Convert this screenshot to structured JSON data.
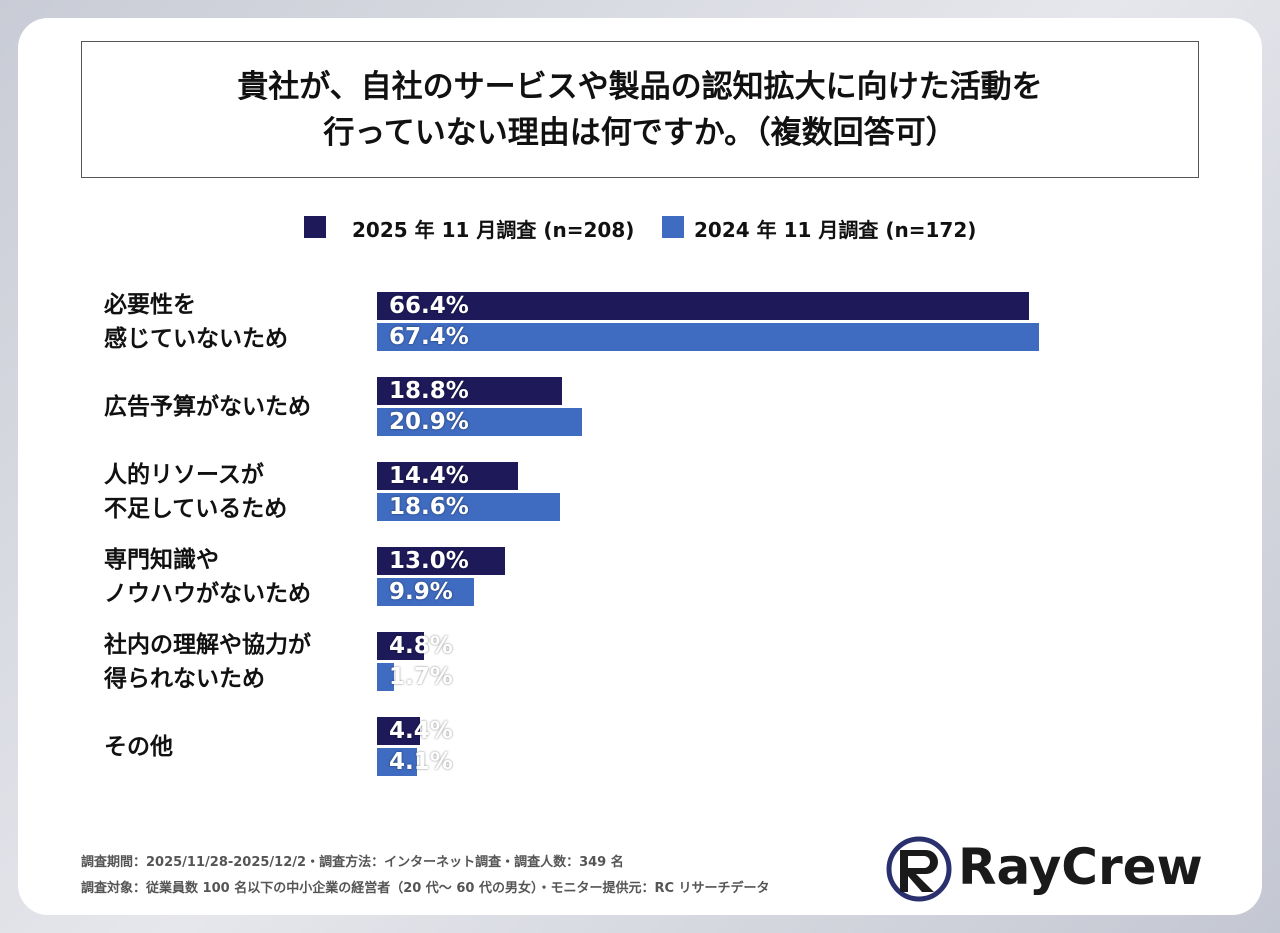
{
  "chart_data": {
    "type": "bar",
    "orientation": "horizontal",
    "title": "貴社が、自社のサービスや製品の認知拡大に向けた活動を\n行っていない理由は何ですか。（複数回答可）",
    "categories": [
      "必要性を\n感じていないため",
      "広告予算がないため",
      "人的リソースが\n不足しているため",
      "専門知識や\nノウハウがないため",
      "社内の理解や協力が\n得られないため",
      "その他"
    ],
    "series": [
      {
        "name": "2025 年 11 月調査 (n=208)",
        "color": "#1e1a5a",
        "values": [
          66.4,
          18.8,
          14.4,
          13.0,
          4.8,
          4.4
        ],
        "value_labels": [
          "66.4%",
          "18.8%",
          "14.4%",
          "13.0%",
          "4.8%",
          "4.4%"
        ]
      },
      {
        "name": "2024 年 11 月調査 (n=172)",
        "color": "#3f6bc0",
        "values": [
          67.4,
          20.9,
          18.6,
          9.9,
          1.7,
          4.1
        ],
        "value_labels": [
          "67.4%",
          "20.9%",
          "18.6%",
          "9.9%",
          "1.7%",
          "4.1%"
        ]
      }
    ]
  },
  "footer": {
    "lines": [
      "調査期間：2025/11/28-2025/12/2・調査方法：インターネット調査・調査人数：349 名",
      "調査対象：従業員数 100 名以下の中小企業の経営者（20 代～ 60 代の男女）・モニター提供元：RC リサーチデータ"
    ]
  },
  "logo": "RayCrew"
}
